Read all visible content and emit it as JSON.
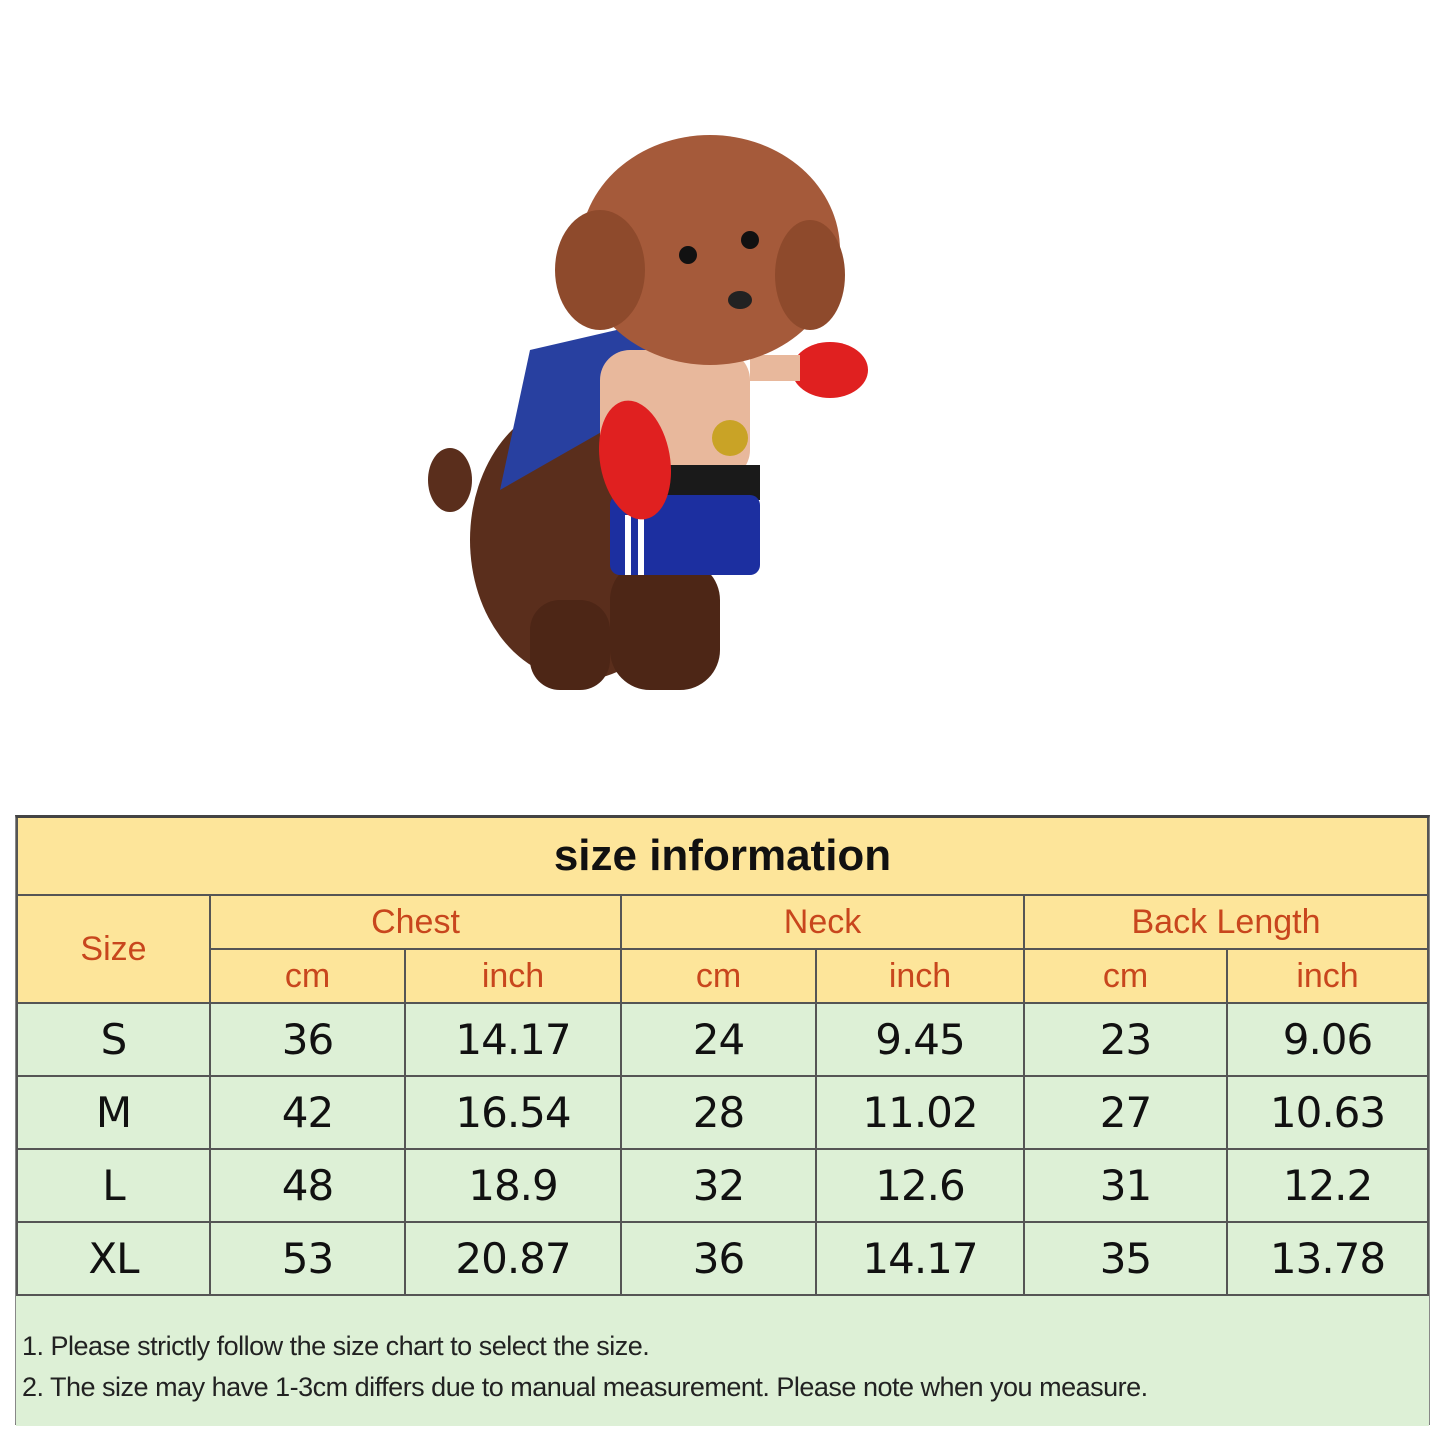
{
  "product_image": {
    "subject": "dog-in-boxer-costume"
  },
  "size_chart": {
    "title": "size  information",
    "size_header": "Size",
    "groups": [
      "Chest",
      "Neck",
      "Back Length"
    ],
    "units": [
      "cm",
      "inch",
      "cm",
      "inch",
      "cm",
      "inch"
    ],
    "rows": [
      {
        "size": "S",
        "values": [
          "36",
          "14.17",
          "24",
          "9.45",
          "23",
          "9.06"
        ]
      },
      {
        "size": "M",
        "values": [
          "42",
          "16.54",
          "28",
          "11.02",
          "27",
          "10.63"
        ]
      },
      {
        "size": "L",
        "values": [
          "48",
          "18.9",
          "32",
          "12.6",
          "31",
          "12.2"
        ]
      },
      {
        "size": "XL",
        "values": [
          "53",
          "20.87",
          "36",
          "14.17",
          "35",
          "13.78"
        ]
      }
    ],
    "notes": [
      "1. Please strictly follow the size chart  to select the size.",
      "2. The size may have 1-3cm differs due to manual measurement. Please note when you measure."
    ]
  },
  "colors": {
    "header_bg": "#fde59a",
    "header_text": "#c8461d",
    "body_bg": "#ddf0d6"
  }
}
